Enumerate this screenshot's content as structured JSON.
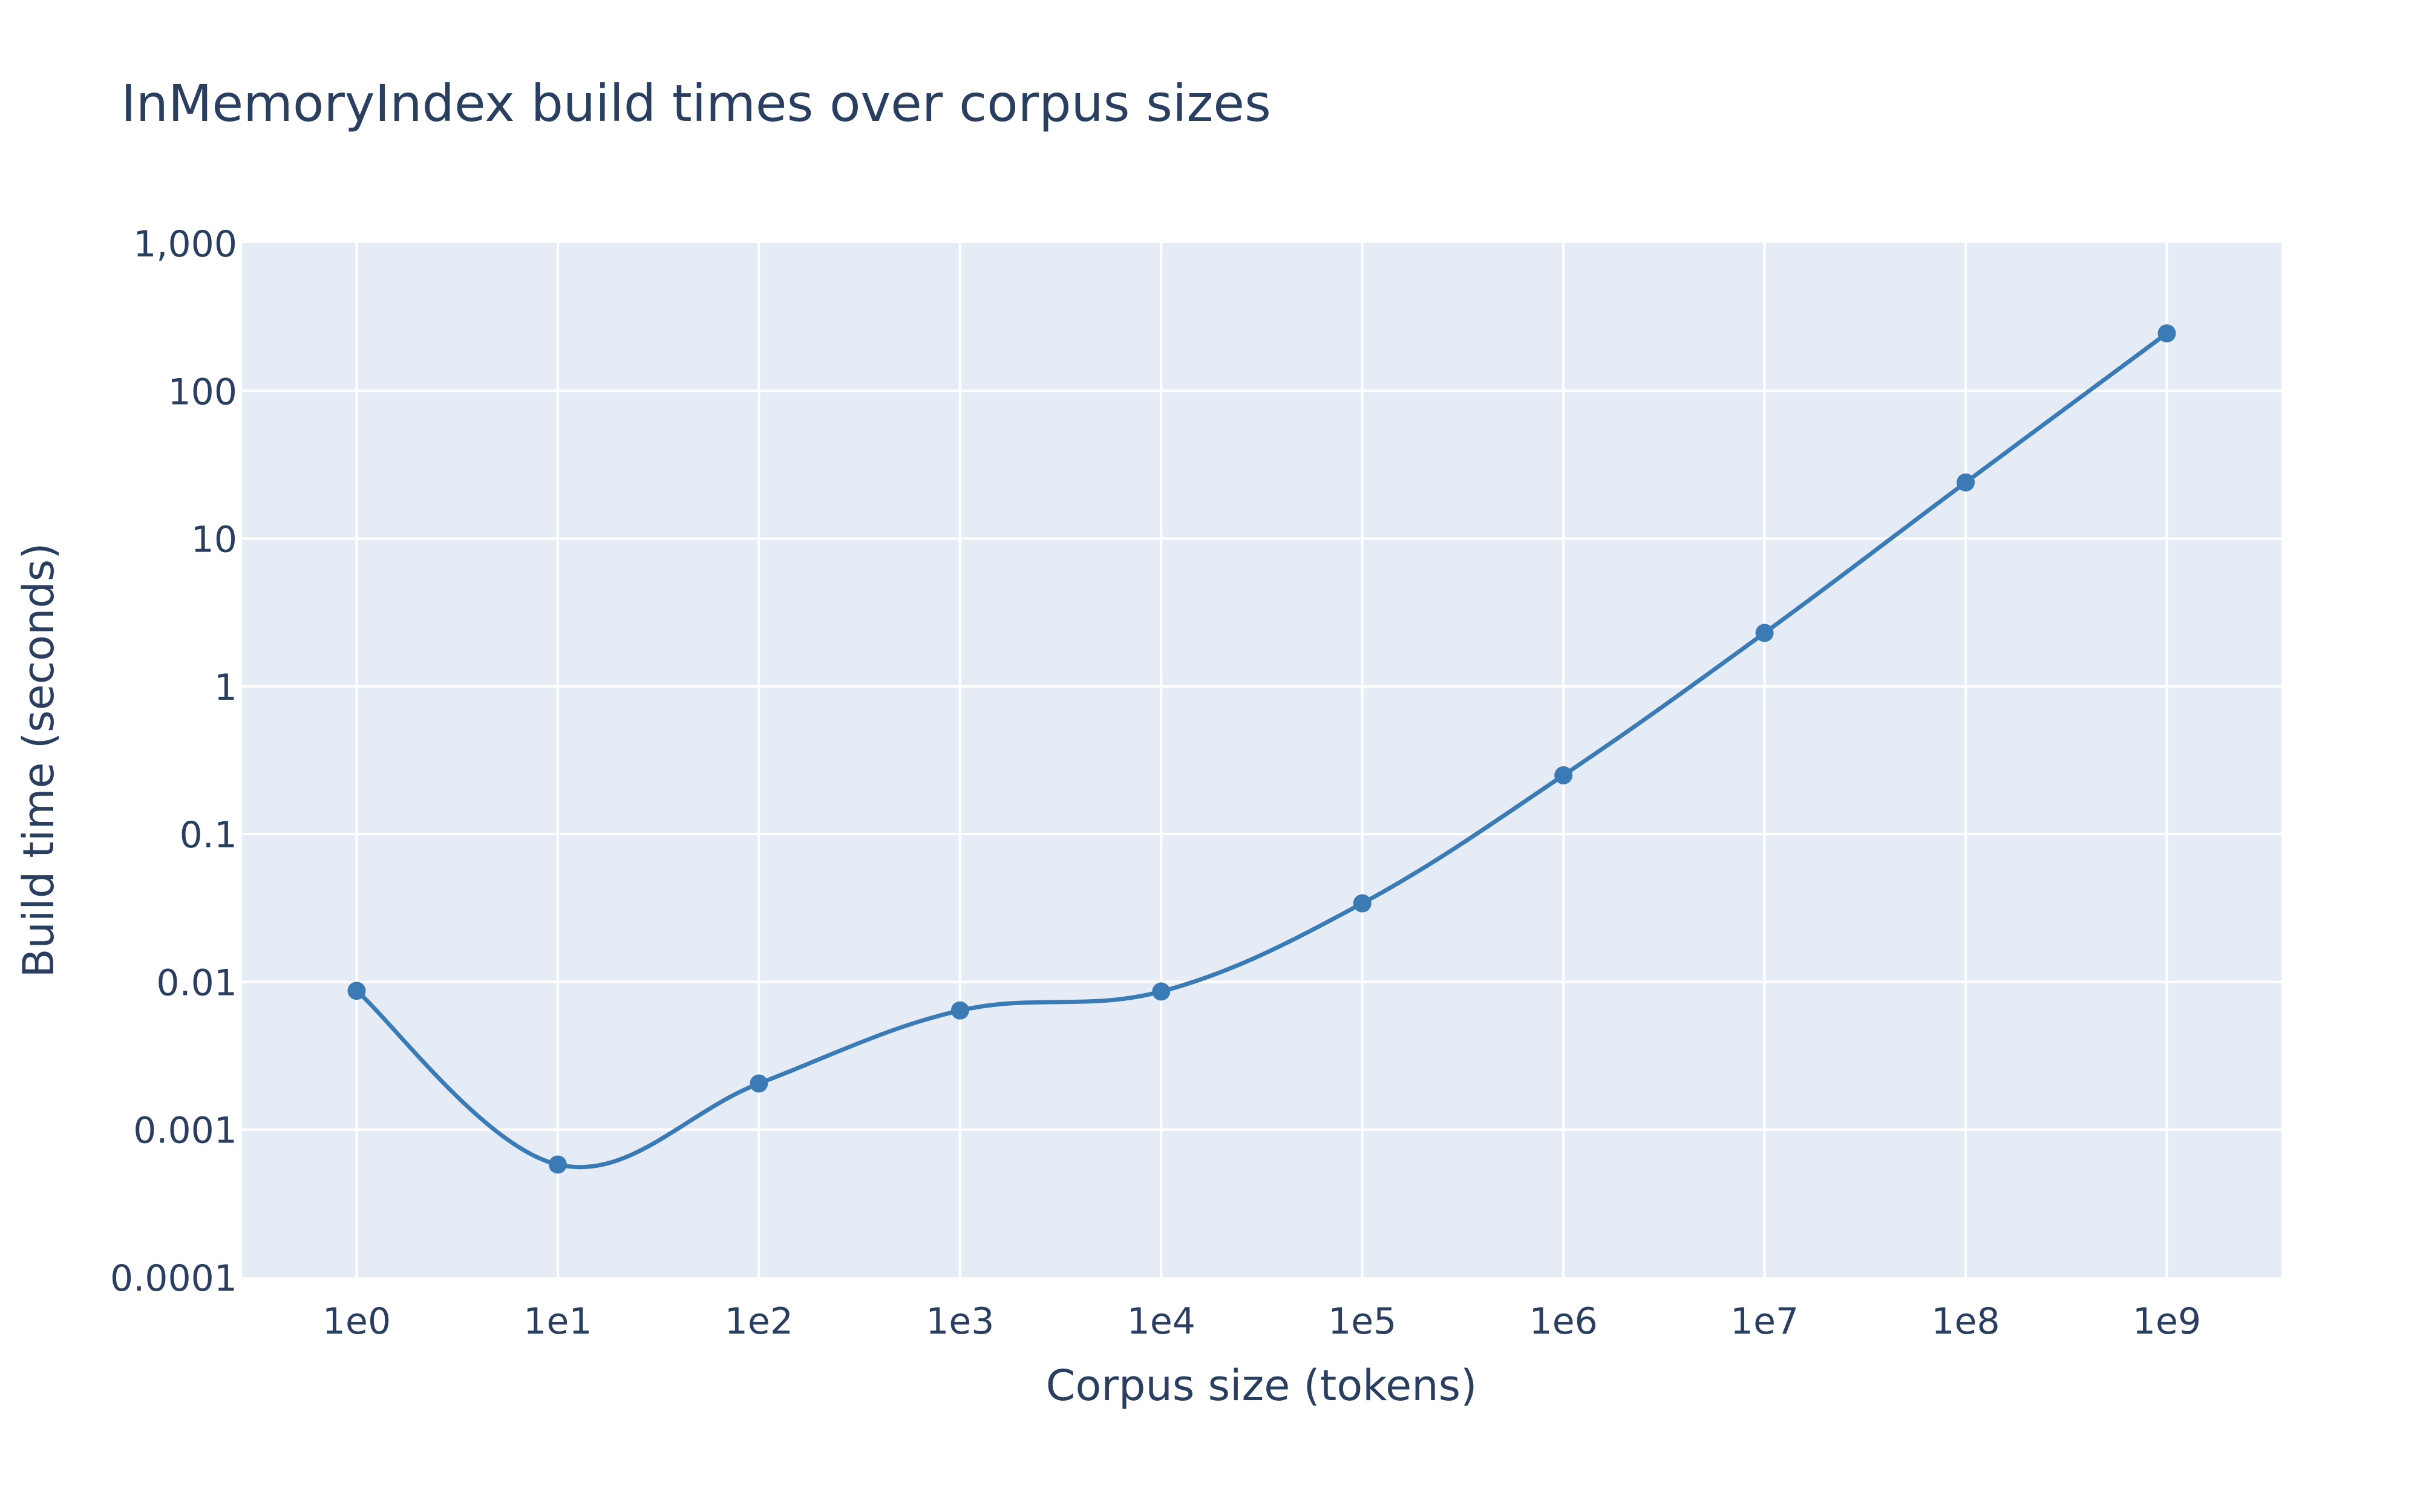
{
  "chart_data": {
    "type": "line",
    "title": "InMemoryIndex build times over corpus sizes",
    "xlabel": "Corpus size (tokens)",
    "ylabel": "Build time (seconds)",
    "x_scale": "log",
    "y_scale": "log",
    "x_tick_labels": [
      "1e0",
      "1e1",
      "1e2",
      "1e3",
      "1e4",
      "1e5",
      "1e6",
      "1e7",
      "1e8",
      "1e9"
    ],
    "y_tick_labels": [
      "0.0001",
      "0.001",
      "0.01",
      "0.1",
      "1",
      "10",
      "100",
      "1,000"
    ],
    "ylim": [
      0.0001,
      1000
    ],
    "grid": true,
    "legend": "none",
    "line_shape": "spline",
    "colors": {
      "line": "#3a7bb5",
      "plot_bg": "#e5ecf6",
      "grid": "#ffffff"
    },
    "series": [
      {
        "x": [
          1,
          10,
          100,
          1000,
          10000,
          100000,
          1000000,
          10000000,
          100000000,
          1000000000
        ],
        "y": [
          0.0087,
          0.00058,
          0.00205,
          0.0064,
          0.0086,
          0.034,
          0.25,
          2.3,
          24,
          245
        ]
      }
    ]
  }
}
